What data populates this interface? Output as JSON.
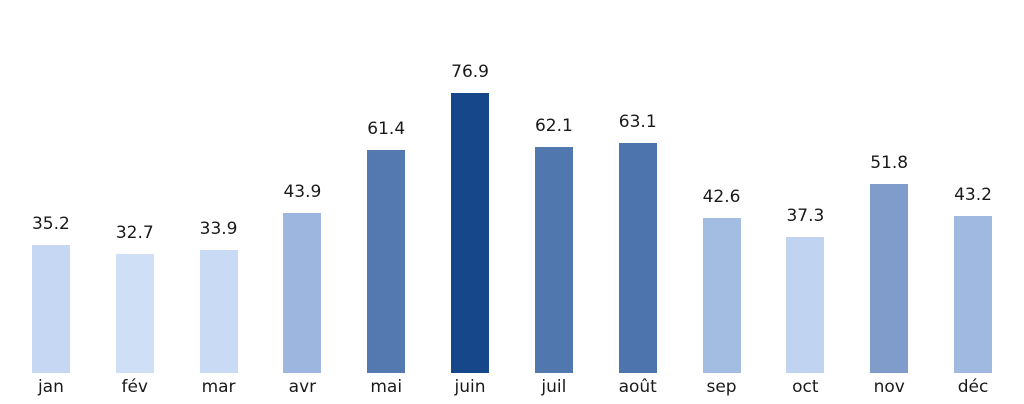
{
  "chart_data": {
    "type": "bar",
    "title": "",
    "xlabel": "",
    "ylabel": "",
    "categories": [
      "jan",
      "fév",
      "mar",
      "avr",
      "mai",
      "juin",
      "juil",
      "août",
      "sep",
      "oct",
      "nov",
      "déc"
    ],
    "values": [
      35.2,
      32.7,
      33.9,
      43.9,
      61.4,
      76.9,
      62.1,
      63.1,
      42.6,
      37.3,
      51.8,
      43.2
    ],
    "value_labels": [
      "35.2",
      "32.7",
      "33.9",
      "43.9",
      "61.4",
      "76.9",
      "62.1",
      "63.1",
      "42.6",
      "37.3",
      "51.8",
      "43.2"
    ],
    "bar_colors": [
      "#c5d7f2",
      "#cfdff6",
      "#c9dbf4",
      "#9db6e0",
      "#5479b1",
      "#17478b",
      "#5077ae",
      "#4d74ac",
      "#a3bce2",
      "#c0d3f0",
      "#7f9cca",
      "#9fb9e0"
    ],
    "color_scale_note": "blues-colormap-darker-for-higher-values",
    "label_color": "#1a1a1a",
    "background_color": "#ffffff",
    "ylim": [
      0,
      102.5
    ],
    "grid": false,
    "axes_visible": false,
    "legend": null,
    "value_labels_position": "above-bars"
  }
}
